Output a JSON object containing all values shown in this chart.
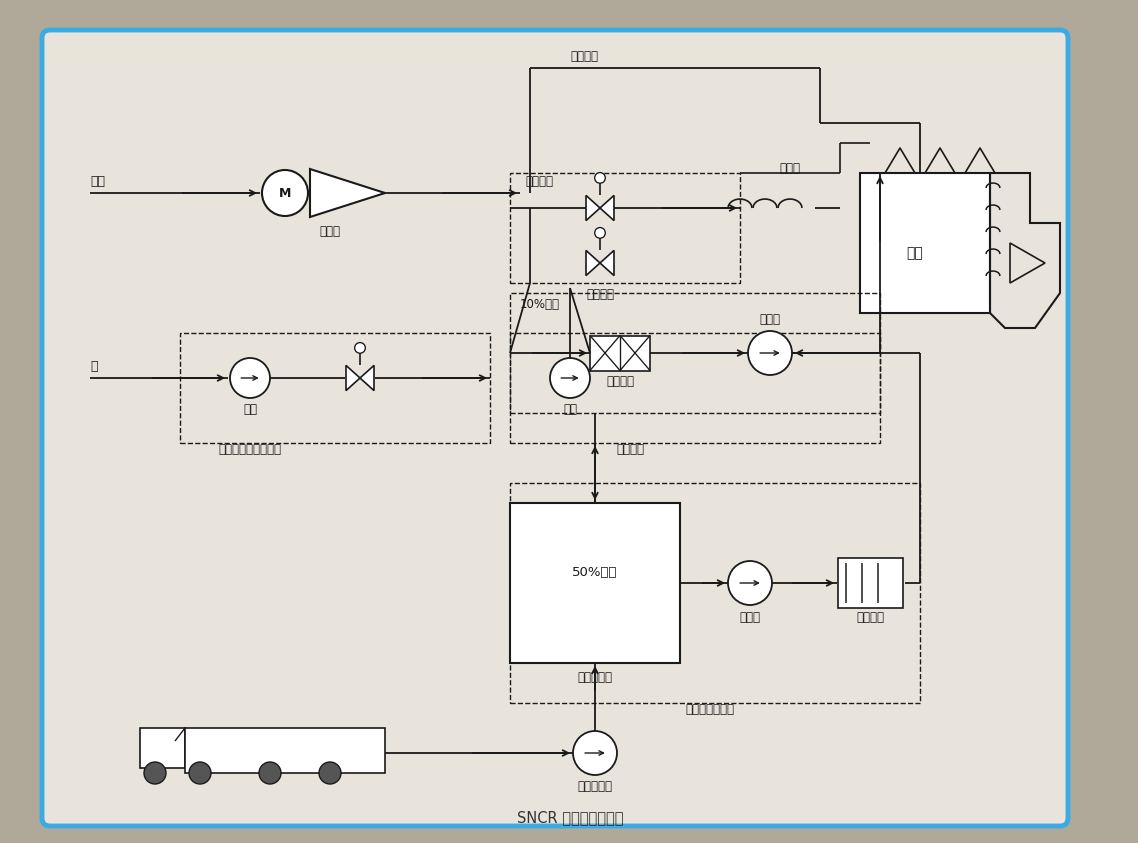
{
  "title": "SNCR 工艺流程示意图",
  "bg_color": "#e8e4dc",
  "border_color": "#3aabe4",
  "line_color": "#1a1a1a",
  "text_color": "#1a1a1a",
  "labels": {
    "air_in": "空气",
    "compressor": "空压机",
    "vaporized_air": "气化空气",
    "cool_air": "冷却空气",
    "injector": "注入器",
    "distribution": "均分模块",
    "boiler": "锅炉",
    "urea10": "10%尿素",
    "static_mix": "静态混合",
    "metering_pump": "计量泵",
    "water_in": "水",
    "water_pump1": "水泵",
    "water_pump2": "水泵",
    "dilution_module": "稀释水压力控制模块",
    "metering_module": "计量模块",
    "urea50": "50%尿素",
    "urea_tank": "尿素储存罐",
    "circ_pump": "循环泵",
    "heater": "电加热器",
    "supply_module": "供应及循环模块",
    "unload_pump": "尿素卸载泵"
  }
}
